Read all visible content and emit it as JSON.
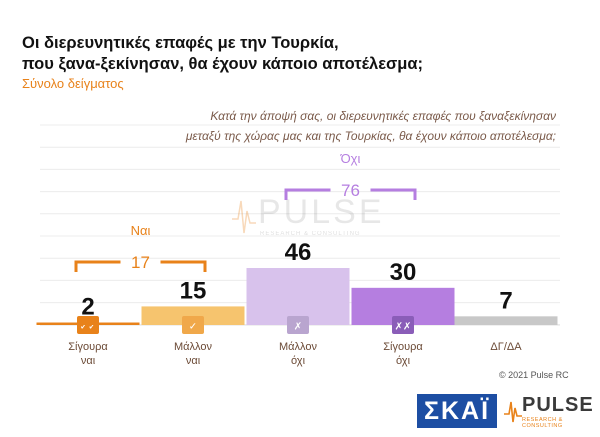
{
  "title_line1": "Οι διερευνητικές επαφές με την Τουρκία,",
  "title_line2": "που ξανα-ξεκίνησαν, θα έχουν κάποιο αποτέλεσμα;",
  "subtitle": "Σύνολο δείγματος",
  "question_line1": "Κατά την άποψή σας, οι διερευνητικές επαφές που ξαναξεκίνησαν",
  "question_line2": "μεταξύ της χώρας μας και της Τουρκίας, θα έχουν κάποιο αποτέλεσμα;",
  "copyright": "© 2021 Pulse RC",
  "logos": {
    "skai": "ΣΚΑΪ",
    "pulse_word": "PULSE",
    "pulse_tag": "RESEARCH & CONSULTING"
  },
  "colors": {
    "orange": "#e8821a",
    "orange_light": "#f6c46e",
    "purple_light": "#d8c2ec",
    "purple": "#b57ee0",
    "gray": "#c8c8c8"
  },
  "chart_data": {
    "type": "bar",
    "title": "Οι διερευνητικές επαφές με την Τουρκία, που ξανα-ξεκίνησαν, θα έχουν κάποιο αποτέλεσμα;",
    "categories": [
      [
        "Σίγουρα",
        "ναι"
      ],
      [
        "Μάλλον",
        "ναι"
      ],
      [
        "Μάλλον",
        "όχι"
      ],
      [
        "Σίγουρα",
        "όχι"
      ],
      [
        "ΔΓ/ΔΑ"
      ]
    ],
    "values": [
      2,
      15,
      46,
      30,
      7
    ],
    "bar_colors": [
      "#e8821a",
      "#f6c46e",
      "#d8c2ec",
      "#b57ee0",
      "#c8c8c8"
    ],
    "icons": [
      "double-check-icon",
      "check-icon",
      "cross-icon",
      "double-cross-icon",
      ""
    ],
    "icon_glyphs": [
      "✓✓",
      "✓",
      "✗",
      "✗✗",
      ""
    ],
    "groups": [
      {
        "label": "Ναι",
        "value": "17",
        "color": "#e8821a",
        "categories": [
          0,
          1
        ]
      },
      {
        "label": "Όχι",
        "value": "76",
        "color": "#b57ee0",
        "categories": [
          2,
          3
        ]
      }
    ],
    "ylim": [
      0,
      50
    ],
    "grid": true,
    "watermark": {
      "word": "PULSE",
      "tag": "RESEARCH & CONSULTING"
    }
  }
}
